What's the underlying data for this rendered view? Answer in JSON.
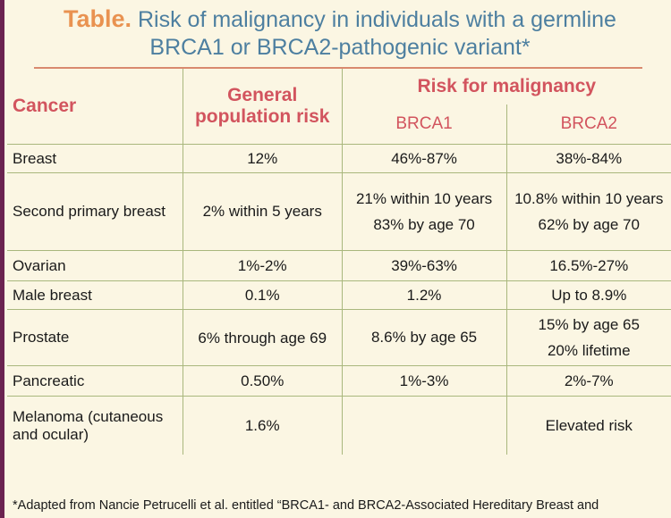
{
  "title": {
    "strong": "Table.",
    "line1": "Risk of malignancy in individuals with a germline",
    "line2": "BRCA1 or BRCA2-pathogenic variant*"
  },
  "headers": {
    "cancer": "Cancer",
    "general": "General population risk",
    "risk": "Risk for malignancy",
    "brca1": "BRCA1",
    "brca2": "BRCA2"
  },
  "rows": [
    {
      "cancer": "Breast",
      "general": "12%",
      "brca1": "46%-87%",
      "brca2": "38%-84%"
    },
    {
      "cancer": "Second primary breast",
      "general": "2% within 5 years",
      "brca1_a": "21% within 10 years",
      "brca1_b": "83% by age 70",
      "brca2_a": "10.8% within 10 years",
      "brca2_b": "62% by age 70"
    },
    {
      "cancer": "Ovarian",
      "general": "1%-2%",
      "brca1": "39%-63%",
      "brca2": "16.5%-27%"
    },
    {
      "cancer": "Male breast",
      "general": "0.1%",
      "brca1": "1.2%",
      "brca2": "Up to 8.9%"
    },
    {
      "cancer": "Prostate",
      "general": "6% through age 69",
      "brca1": "8.6% by age 65",
      "brca2_a": "15% by age 65",
      "brca2_b": "20% lifetime"
    },
    {
      "cancer": "Pancreatic",
      "general": "0.50%",
      "brca1": "1%-3%",
      "brca2": "2%-7%"
    },
    {
      "cancer": "Melanoma (cutaneous and ocular)",
      "general": "1.6%",
      "brca1": "",
      "brca2": "Elevated risk"
    }
  ],
  "footnote": "*Adapted from Nancie Petrucelli  et al. entitled “BRCA1- and BRCA2-Associated Hereditary Breast and",
  "colors": {
    "background": "#fbf6e3",
    "title_blue": "#4d7fa0",
    "title_orange": "#e99250",
    "header_red": "#d2545e",
    "grid_green": "#a9b77d",
    "left_bar": "#6b2350"
  }
}
